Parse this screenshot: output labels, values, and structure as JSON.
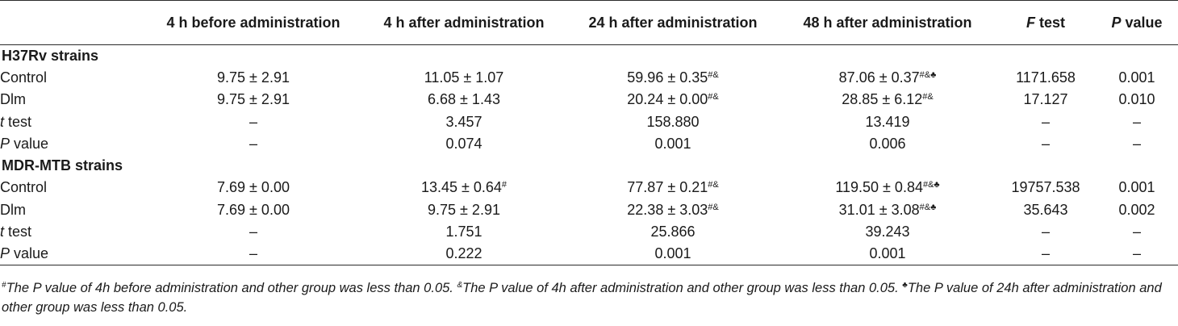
{
  "header": {
    "stub": "",
    "c1": "4 h before administration",
    "c2": "4 h after administration",
    "c3": "24 h after administration",
    "c4": "48 h after administration",
    "c5_italic": "F",
    "c5_rest": " test",
    "c6_italic": "P",
    "c6_rest": " value"
  },
  "sections": [
    {
      "title": "H37Rv strains",
      "rows": [
        {
          "label": "Control",
          "c1": "9.75 ± 2.91",
          "c2": "11.05 ± 1.07",
          "c2sup": "",
          "c3": "59.96 ± 0.35",
          "c3sup": "#&",
          "c4": "87.06 ± 0.37",
          "c4sup": "#&♣",
          "c5": "1171.658",
          "c6": "0.001"
        },
        {
          "label": "Dlm",
          "c1": "9.75 ± 2.91",
          "c2": "6.68 ± 1.43",
          "c2sup": "",
          "c3": "20.24 ± 0.00",
          "c3sup": "#&",
          "c4": "28.85 ± 6.12",
          "c4sup": "#&",
          "c5": "17.127",
          "c6": "0.010"
        }
      ],
      "ttest": {
        "label_italic": "t",
        "label_rest": " test",
        "c1": "–",
        "c2": "3.457",
        "c3": "158.880",
        "c4": "13.419",
        "c5": "–",
        "c6": "–"
      },
      "pvalue": {
        "label_italic": "P",
        "label_rest": " value",
        "c1": "–",
        "c2": "0.074",
        "c3": "0.001",
        "c4": "0.006",
        "c5": "–",
        "c6": "–"
      }
    },
    {
      "title": "MDR-MTB strains",
      "rows": [
        {
          "label": "Control",
          "c1": "7.69 ± 0.00",
          "c2": "13.45 ± 0.64",
          "c2sup": "#",
          "c3": "77.87 ± 0.21",
          "c3sup": "#&",
          "c4": "119.50 ± 0.84",
          "c4sup": "#&♣",
          "c5": "19757.538",
          "c6": "0.001"
        },
        {
          "label": "Dlm",
          "c1": "7.69 ± 0.00",
          "c2": "9.75 ± 2.91",
          "c2sup": "",
          "c3": "22.38 ± 3.03",
          "c3sup": "#&",
          "c4": "31.01 ± 3.08",
          "c4sup": "#&♣",
          "c5": "35.643",
          "c6": "0.002"
        }
      ],
      "ttest": {
        "label_italic": "t",
        "label_rest": " test",
        "c1": "–",
        "c2": "1.751",
        "c3": "25.866",
        "c4": "39.243",
        "c5": "–",
        "c6": "–"
      },
      "pvalue": {
        "label_italic": "P",
        "label_rest": " value",
        "c1": "–",
        "c2": "0.222",
        "c3": "0.001",
        "c4": "0.001",
        "c5": "–",
        "c6": "–"
      }
    }
  ],
  "footnote": {
    "sup1": "#",
    "text1": "The P value of 4h before administration and other group was less than 0.05. ",
    "sup2": "&",
    "text2": "The P value of 4h after administration and other group was less than 0.05. ",
    "sup3": "♣",
    "text3": "The P value of 24h after administration and other group was less than 0.05."
  }
}
